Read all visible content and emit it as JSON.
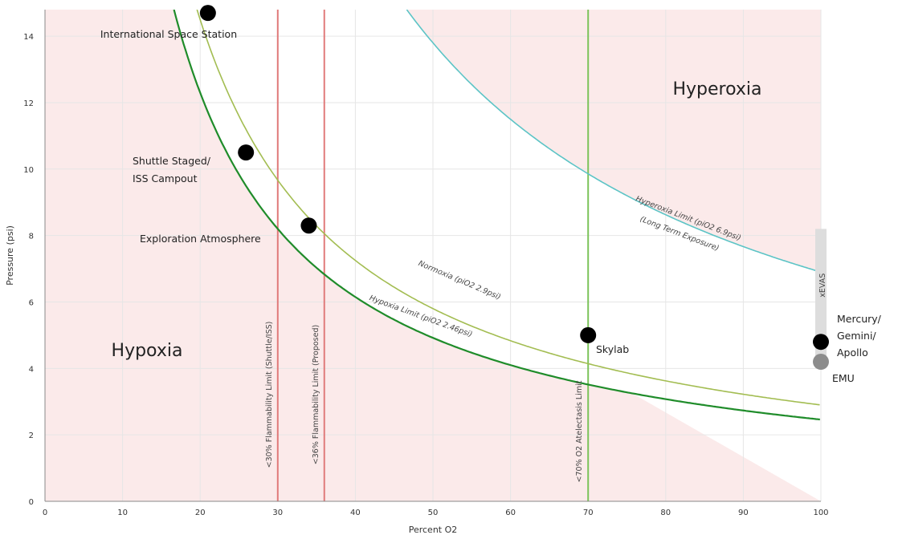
{
  "chart_data": {
    "type": "line",
    "title": "",
    "xlabel": "Percent O2",
    "ylabel": "Pressure (psi)",
    "xlim": [
      0,
      100
    ],
    "ylim": [
      0,
      14.8
    ],
    "x_ticks": [
      0,
      10,
      20,
      30,
      40,
      50,
      60,
      70,
      80,
      90,
      100
    ],
    "y_ticks": [
      0,
      2,
      4,
      6,
      8,
      10,
      12,
      14
    ],
    "grid": true,
    "regions": [
      {
        "label": "Hypoxia",
        "color": "#fbeaea"
      },
      {
        "label": "Hyperoxia",
        "color": "#fbeaea"
      }
    ],
    "series": [
      {
        "name": "Hypoxia Limit (piO2 2.46psi)",
        "ppO2": 2.46,
        "color": "#1f8c2a"
      },
      {
        "name": "Normoxia (piO2 2.9psi)",
        "ppO2": 2.9,
        "color": "#a3bd52"
      },
      {
        "name": "Hyperoxia Limit (piO2 6.9psi)",
        "sublabel": "(Long Term Exposure)",
        "ppO2": 6.9,
        "color": "#5cc4c6"
      }
    ],
    "vertical_lines": [
      {
        "x": 30,
        "label": "<30% Flammability Limit (Shuttle/ISS)",
        "color": "#e07a7a"
      },
      {
        "x": 36,
        "label": "<36% Flammability Limit (Proposed)",
        "color": "#e07a7a"
      },
      {
        "x": 70,
        "label": "<70% O2 Atelectasis Limit",
        "color": "#7cc35a"
      }
    ],
    "points": [
      {
        "label": "International Space Station",
        "x": 21,
        "y": 14.7,
        "color": "#000000"
      },
      {
        "label": "Shuttle Staged/ ISS Campout",
        "x": 25.9,
        "y": 10.5,
        "color": "#000000"
      },
      {
        "label": "Exploration Atmosphere",
        "x": 34,
        "y": 8.3,
        "color": "#000000"
      },
      {
        "label": "Skylab",
        "x": 70,
        "y": 5.0,
        "color": "#000000"
      },
      {
        "label": "Mercury/ Gemini/ Apollo",
        "x": 100,
        "y": 4.8,
        "color": "#000000"
      },
      {
        "label": "EMU",
        "x": 100,
        "y": 4.2,
        "color": "#8c8c8c"
      }
    ],
    "xevas_band": {
      "label": "xEVAS",
      "x": 100,
      "y_range": [
        4.2,
        8.2
      ],
      "color": "#dddddd"
    }
  }
}
